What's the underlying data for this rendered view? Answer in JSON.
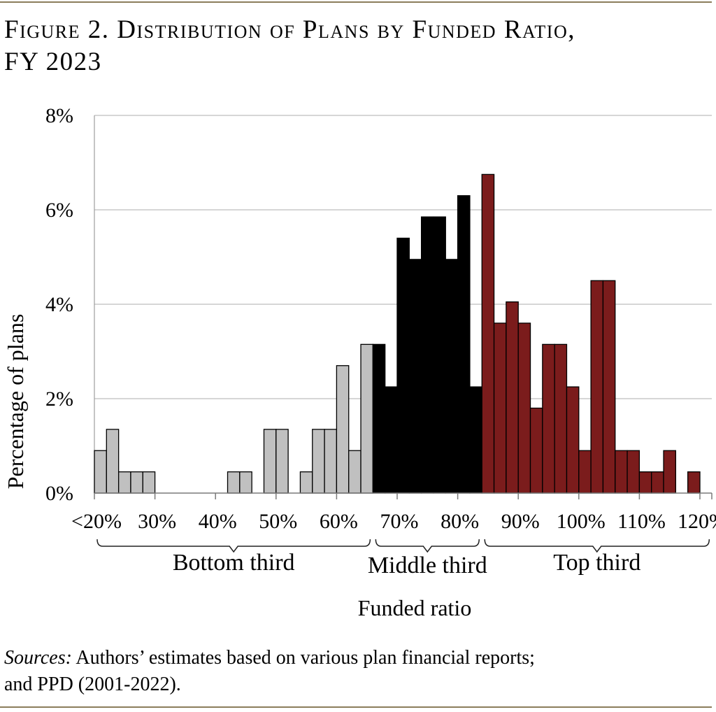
{
  "header": {
    "title_line1": "Figure 2. Distribution of Plans by Funded Ratio,",
    "title_line2": "FY 2023"
  },
  "footer": {
    "source_label": "Sources:",
    "source_text": " Authors’ estimates based on various plan financial reports;",
    "source_text_line2": "and PPD (2001-2022)."
  },
  "colors": {
    "rule": "#8B7D5B",
    "bottom_third": "#C0C0C0",
    "middle_third": "#000000",
    "top_third": "#7B1C1C",
    "grid": "#BDBDBD"
  },
  "chart_data": {
    "type": "bar",
    "title": "",
    "xlabel": "Funded ratio",
    "ylabel": "Percentage of plans",
    "ylim": [
      0,
      8
    ],
    "yticks": [
      "0%",
      "2%",
      "4%",
      "6%",
      "8%"
    ],
    "xticks": [
      "<20%",
      "30%",
      "40%",
      "50%",
      "60%",
      "70%",
      "80%",
      "90%",
      "100%",
      "110%",
      "120%"
    ],
    "x_tick_values": [
      20,
      30,
      40,
      50,
      60,
      70,
      80,
      90,
      100,
      110,
      120
    ],
    "bin_width": 2,
    "grid": true,
    "groups": [
      "Bottom third",
      "Middle third",
      "Top third"
    ],
    "series": [
      {
        "name": "Bottom third",
        "x": [
          20,
          22,
          24,
          26,
          28,
          30,
          32,
          34,
          36,
          38,
          40,
          42,
          44,
          46,
          48,
          50,
          52,
          54,
          56,
          58,
          60,
          62,
          64
        ],
        "values": [
          0.9,
          1.35,
          0.45,
          0.45,
          0.45,
          0,
          0,
          0,
          0,
          0,
          0,
          0.45,
          0.45,
          0,
          1.35,
          1.35,
          0,
          0.45,
          1.35,
          1.35,
          2.7,
          0.9,
          3.15
        ]
      },
      {
        "name": "Middle third",
        "x": [
          66,
          68,
          70,
          72,
          74,
          76,
          78,
          80,
          82
        ],
        "values": [
          3.15,
          2.25,
          5.4,
          4.95,
          5.85,
          5.85,
          4.95,
          6.3,
          2.25
        ]
      },
      {
        "name": "Top third",
        "x": [
          84,
          86,
          88,
          90,
          92,
          94,
          96,
          98,
          100,
          102,
          104,
          106,
          108,
          110,
          112,
          114,
          116,
          118
        ],
        "values": [
          6.75,
          3.6,
          4.05,
          3.6,
          1.8,
          3.15,
          3.15,
          2.25,
          0.9,
          4.5,
          4.5,
          0.9,
          0.9,
          0.45,
          0.45,
          0.9,
          0,
          0.45
        ]
      }
    ]
  }
}
